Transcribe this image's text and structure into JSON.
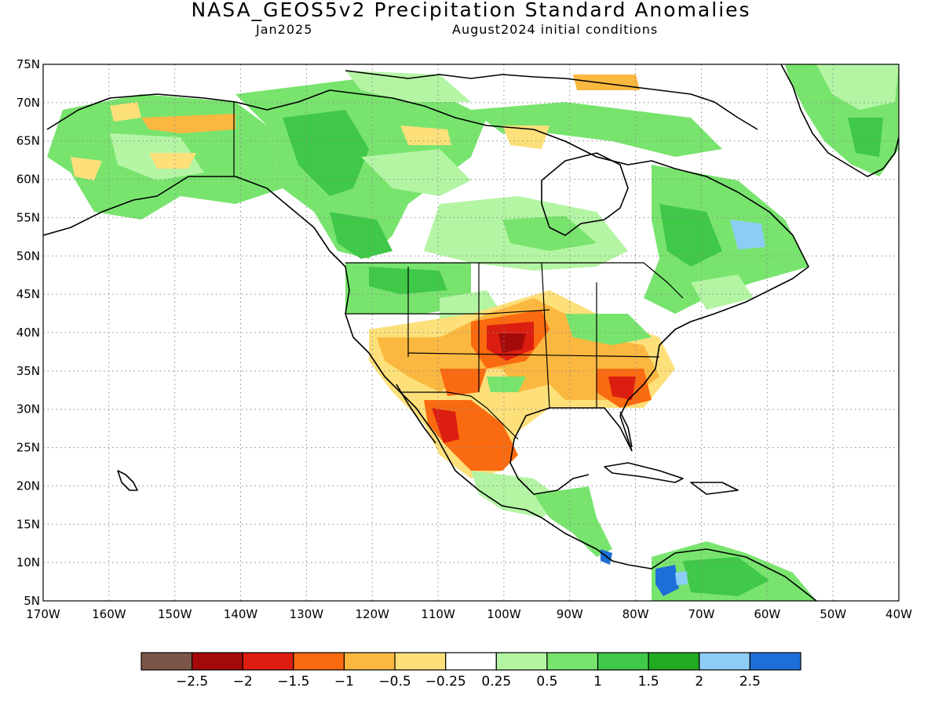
{
  "header": {
    "title": "NASA_GEOS5v2 Precipitation Standard Anomalies",
    "month": "Jan2025",
    "init": "August2024 initial conditions"
  },
  "map": {
    "lat_labels": [
      "75N",
      "70N",
      "65N",
      "60N",
      "55N",
      "50N",
      "45N",
      "40N",
      "35N",
      "30N",
      "25N",
      "20N",
      "15N",
      "10N",
      "5N"
    ],
    "lon_labels": [
      "170W",
      "160W",
      "150W",
      "140W",
      "130W",
      "120W",
      "110W",
      "100W",
      "90W",
      "80W",
      "70W",
      "60W",
      "50W",
      "40W"
    ],
    "lat_range": [
      5,
      75
    ],
    "lon_range": [
      -170,
      -40
    ],
    "grid": "dotted"
  },
  "colorbar": {
    "colors": [
      "#7a5548",
      "#a50a0a",
      "#dc1e10",
      "#fa6a10",
      "#fbb840",
      "#fde07a",
      "#ffffff",
      "#b4f5a4",
      "#78e46e",
      "#40c848",
      "#22aa22",
      "#8ccdf5",
      "#1e6ed8"
    ],
    "labels": [
      "−2.5",
      "−2",
      "−1.5",
      "−1",
      "−0.5",
      "−0.25",
      "0.25",
      "0.5",
      "1",
      "1.5",
      "2",
      "2.5"
    ]
  }
}
